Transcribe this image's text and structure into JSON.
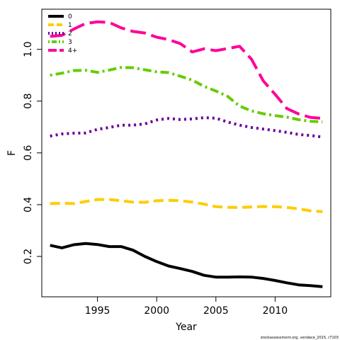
{
  "chart_data": {
    "type": "line",
    "xlabel": "Year",
    "ylabel": "F",
    "xlim": [
      1990.3,
      2014.7
    ],
    "ylim": [
      0.044,
      1.155
    ],
    "x_ticks": [
      1995,
      2000,
      2005,
      2010
    ],
    "x_tick_labels": [
      "1995",
      "2000",
      "2005",
      "2010"
    ],
    "y_ticks": [
      0.2,
      0.4,
      0.6,
      0.8,
      1.0
    ],
    "y_tick_labels": [
      "0.2",
      "0.4",
      "0.6",
      "0.8",
      "1.0"
    ],
    "grid": false,
    "legend_position": "top-left",
    "x": [
      1991,
      1992,
      1993,
      1994,
      1995,
      1996,
      1997,
      1998,
      1999,
      2000,
      2001,
      2002,
      2003,
      2004,
      2005,
      2006,
      2007,
      2008,
      2009,
      2010,
      2011,
      2012,
      2013,
      2014
    ],
    "series": [
      {
        "name": "0",
        "color": "#000000",
        "dash": "solid",
        "values": [
          0.243,
          0.233,
          0.245,
          0.25,
          0.246,
          0.238,
          0.238,
          0.224,
          0.2,
          0.18,
          0.163,
          0.153,
          0.142,
          0.127,
          0.12,
          0.12,
          0.121,
          0.12,
          0.115,
          0.107,
          0.098,
          0.09,
          0.087,
          0.083
        ]
      },
      {
        "name": "1",
        "color": "#FFCC00",
        "dash": "dashed",
        "values": [
          0.404,
          0.405,
          0.404,
          0.412,
          0.42,
          0.42,
          0.415,
          0.41,
          0.409,
          0.415,
          0.417,
          0.415,
          0.41,
          0.402,
          0.392,
          0.39,
          0.389,
          0.391,
          0.393,
          0.392,
          0.389,
          0.384,
          0.376,
          0.373
        ]
      },
      {
        "name": "2",
        "color": "#660099",
        "dash": "dotted",
        "values": [
          0.665,
          0.673,
          0.676,
          0.677,
          0.691,
          0.698,
          0.707,
          0.707,
          0.712,
          0.727,
          0.733,
          0.729,
          0.731,
          0.736,
          0.734,
          0.719,
          0.707,
          0.698,
          0.692,
          0.686,
          0.679,
          0.671,
          0.667,
          0.661
        ]
      },
      {
        "name": "3",
        "color": "#66CC00",
        "dash": "dotdash",
        "values": [
          0.9,
          0.908,
          0.918,
          0.919,
          0.911,
          0.92,
          0.93,
          0.929,
          0.921,
          0.913,
          0.91,
          0.896,
          0.881,
          0.857,
          0.839,
          0.818,
          0.781,
          0.762,
          0.751,
          0.744,
          0.738,
          0.728,
          0.722,
          0.72
        ]
      },
      {
        "name": "4+",
        "color": "#FF0099",
        "dash": "longdash",
        "values": [
          1.05,
          1.054,
          1.078,
          1.1,
          1.106,
          1.104,
          1.083,
          1.069,
          1.063,
          1.047,
          1.038,
          1.022,
          0.99,
          1.002,
          0.995,
          1.003,
          1.012,
          0.962,
          0.878,
          0.826,
          0.771,
          0.75,
          0.737,
          0.733
        ]
      }
    ],
    "annotations": [
      "stockassessment.org, vendace_2015, r7103"
    ]
  }
}
